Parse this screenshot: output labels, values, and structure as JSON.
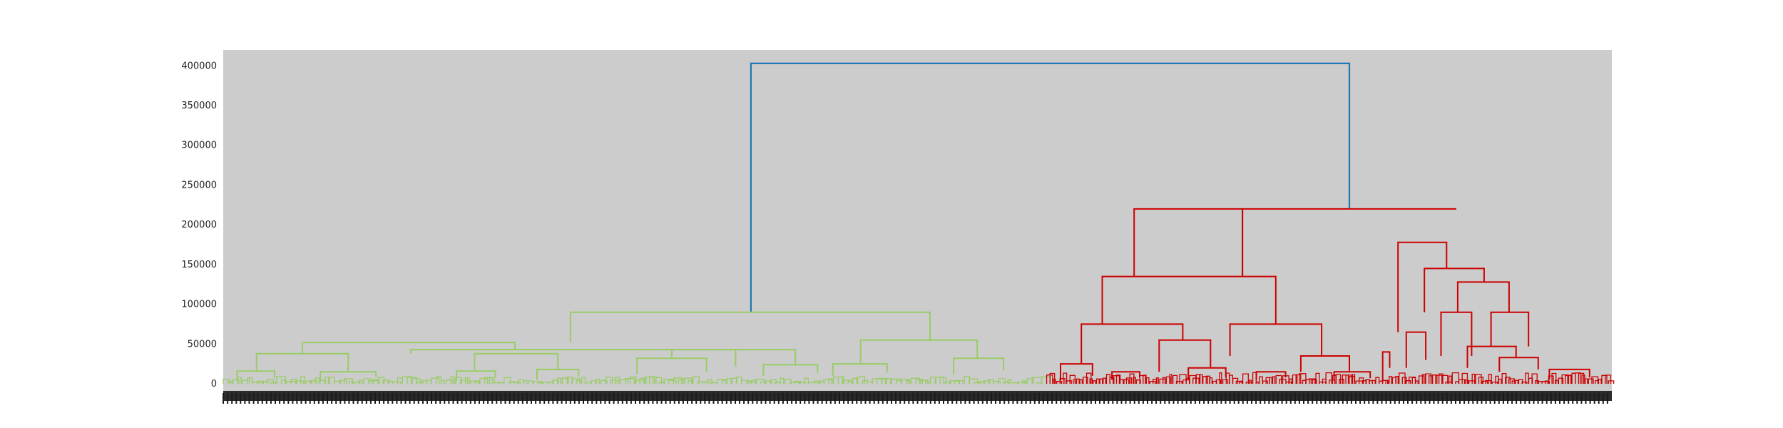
{
  "chart_data": {
    "type": "dendrogram",
    "title": "",
    "xlabel": "",
    "ylabel": "",
    "ylim": [
      0,
      420000
    ],
    "yticks": [
      0,
      50000,
      100000,
      150000,
      200000,
      250000,
      300000,
      350000,
      400000
    ],
    "background": "#cccccc",
    "x_tick_labels_note": "",
    "clusters": [
      {
        "color": "#99cc66",
        "x_range": [
          0.0,
          0.593
        ]
      },
      {
        "color": "#cc0000",
        "x_range": [
          0.593,
          1.0
        ]
      }
    ],
    "links": [
      {
        "x": [
          0.38,
          0.38,
          0.811,
          0.811
        ],
        "y": [
          90000,
          403000,
          403000,
          220000
        ],
        "color": "#1f77b4"
      },
      {
        "x": [
          0.25,
          0.25,
          0.509,
          0.509
        ],
        "y": [
          52000,
          90000,
          90000,
          55000
        ],
        "color": "#99cc66"
      },
      {
        "x": [
          0.057,
          0.057,
          0.21,
          0.21
        ],
        "y": [
          38000,
          52000,
          52000,
          43000
        ],
        "color": "#99cc66"
      },
      {
        "x": [
          0.135,
          0.135,
          0.369,
          0.369
        ],
        "y": [
          38000,
          43000,
          43000,
          22000
        ],
        "color": "#99cc66"
      },
      {
        "x": [
          0.024,
          0.024,
          0.09,
          0.09
        ],
        "y": [
          16000,
          38000,
          38000,
          15000
        ],
        "color": "#99cc66"
      },
      {
        "x": [
          0.181,
          0.181,
          0.241,
          0.241
        ],
        "y": [
          16000,
          38000,
          38000,
          18000
        ],
        "color": "#99cc66"
      },
      {
        "x": [
          0.323,
          0.323,
          0.412,
          0.412
        ],
        "y": [
          32000,
          43000,
          43000,
          24000
        ],
        "color": "#99cc66"
      },
      {
        "x": [
          0.459,
          0.459,
          0.543,
          0.543
        ],
        "y": [
          25000,
          55000,
          55000,
          32000
        ],
        "color": "#99cc66"
      },
      {
        "x": [
          0.298,
          0.298,
          0.348,
          0.348
        ],
        "y": [
          12000,
          32000,
          32000,
          15000
        ],
        "color": "#99cc66"
      },
      {
        "x": [
          0.389,
          0.389,
          0.428,
          0.428
        ],
        "y": [
          10000,
          24000,
          24000,
          14000
        ],
        "color": "#99cc66"
      },
      {
        "x": [
          0.439,
          0.439,
          0.478,
          0.478
        ],
        "y": [
          10000,
          25000,
          25000,
          14000
        ],
        "color": "#99cc66"
      },
      {
        "x": [
          0.526,
          0.526,
          0.562,
          0.562
        ],
        "y": [
          12000,
          32000,
          32000,
          17000
        ],
        "color": "#99cc66"
      },
      {
        "x": [
          0.01,
          0.01,
          0.037,
          0.037
        ],
        "y": [
          4000,
          16000,
          16000,
          7000
        ],
        "color": "#99cc66"
      },
      {
        "x": [
          0.07,
          0.07,
          0.11,
          0.11
        ],
        "y": [
          5000,
          15000,
          15000,
          9000
        ],
        "color": "#99cc66"
      },
      {
        "x": [
          0.168,
          0.168,
          0.196,
          0.196
        ],
        "y": [
          4000,
          16000,
          16000,
          8000
        ],
        "color": "#99cc66"
      },
      {
        "x": [
          0.226,
          0.226,
          0.256,
          0.256
        ],
        "y": [
          5000,
          18000,
          18000,
          9000
        ],
        "color": "#99cc66"
      },
      {
        "x": [
          0.656,
          0.656,
          0.734,
          0.734
        ],
        "y": [
          135000,
          220000,
          220000,
          135000
        ],
        "color": "#cc0000"
      },
      {
        "x": [
          0.734,
          0.734,
          0.888,
          0.888
        ],
        "y": [
          135000,
          220000,
          220000,
          220000
        ],
        "color": "#cc0000"
      },
      {
        "x": [
          0.633,
          0.633,
          0.758,
          0.758
        ],
        "y": [
          75000,
          135000,
          135000,
          75000
        ],
        "color": "#cc0000"
      },
      {
        "x": [
          0.618,
          0.618,
          0.691,
          0.691
        ],
        "y": [
          25000,
          75000,
          75000,
          55000
        ],
        "color": "#cc0000"
      },
      {
        "x": [
          0.674,
          0.674,
          0.711,
          0.711
        ],
        "y": [
          15000,
          55000,
          55000,
          20000
        ],
        "color": "#cc0000"
      },
      {
        "x": [
          0.725,
          0.725,
          0.791,
          0.791
        ],
        "y": [
          35000,
          75000,
          75000,
          35000
        ],
        "color": "#cc0000"
      },
      {
        "x": [
          0.776,
          0.776,
          0.811,
          0.811
        ],
        "y": [
          15000,
          35000,
          35000,
          15000
        ],
        "color": "#cc0000"
      },
      {
        "x": [
          0.846,
          0.846,
          0.881,
          0.881
        ],
        "y": [
          65000,
          178000,
          178000,
          145000
        ],
        "color": "#cc0000"
      },
      {
        "x": [
          0.865,
          0.865,
          0.908,
          0.908
        ],
        "y": [
          90000,
          145000,
          145000,
          128000
        ],
        "color": "#cc0000"
      },
      {
        "x": [
          0.889,
          0.889,
          0.926,
          0.926
        ],
        "y": [
          90000,
          128000,
          128000,
          90000
        ],
        "color": "#cc0000"
      },
      {
        "x": [
          0.877,
          0.877,
          0.899,
          0.899
        ],
        "y": [
          35000,
          90000,
          90000,
          35000
        ],
        "color": "#cc0000"
      },
      {
        "x": [
          0.913,
          0.913,
          0.94,
          0.94
        ],
        "y": [
          47000,
          90000,
          90000,
          47000
        ],
        "color": "#cc0000"
      },
      {
        "x": [
          0.896,
          0.896,
          0.931,
          0.931
        ],
        "y": [
          20000,
          47000,
          47000,
          33000
        ],
        "color": "#cc0000"
      },
      {
        "x": [
          0.919,
          0.919,
          0.947,
          0.947
        ],
        "y": [
          15000,
          33000,
          33000,
          18000
        ],
        "color": "#cc0000"
      },
      {
        "x": [
          0.852,
          0.852,
          0.866,
          0.866
        ],
        "y": [
          20000,
          65000,
          65000,
          30000
        ],
        "color": "#cc0000"
      },
      {
        "x": [
          0.603,
          0.603,
          0.626,
          0.626
        ],
        "y": [
          4000,
          25000,
          25000,
          10000
        ],
        "color": "#cc0000"
      },
      {
        "x": [
          0.64,
          0.64,
          0.66,
          0.66
        ],
        "y": [
          5000,
          15000,
          15000,
          8000
        ],
        "color": "#cc0000"
      },
      {
        "x": [
          0.695,
          0.695,
          0.722,
          0.722
        ],
        "y": [
          5000,
          20000,
          20000,
          8000
        ],
        "color": "#cc0000"
      },
      {
        "x": [
          0.744,
          0.744,
          0.765,
          0.765
        ],
        "y": [
          5000,
          15000,
          15000,
          8000
        ],
        "color": "#cc0000"
      },
      {
        "x": [
          0.8,
          0.8,
          0.826,
          0.826
        ],
        "y": [
          5000,
          15000,
          15000,
          7000
        ],
        "color": "#cc0000"
      },
      {
        "x": [
          0.835,
          0.835,
          0.84,
          0.84
        ],
        "y": [
          3000,
          40000,
          40000,
          20000
        ],
        "color": "#cc0000"
      },
      {
        "x": [
          0.955,
          0.955,
          0.984,
          0.984
        ],
        "y": [
          5000,
          18000,
          18000,
          8000
        ],
        "color": "#cc0000"
      }
    ],
    "leaf_clusters": [
      {
        "color": "#99cc66",
        "x_start": 0.0,
        "x_end": 0.593,
        "max_height": 9000
      },
      {
        "color": "#cc0000",
        "x_start": 0.593,
        "x_end": 1.0,
        "max_height": 14000
      }
    ]
  },
  "axis": {
    "ytick_labels": [
      "0",
      "50000",
      "100000",
      "150000",
      "200000",
      "250000",
      "300000",
      "350000",
      "400000"
    ]
  }
}
